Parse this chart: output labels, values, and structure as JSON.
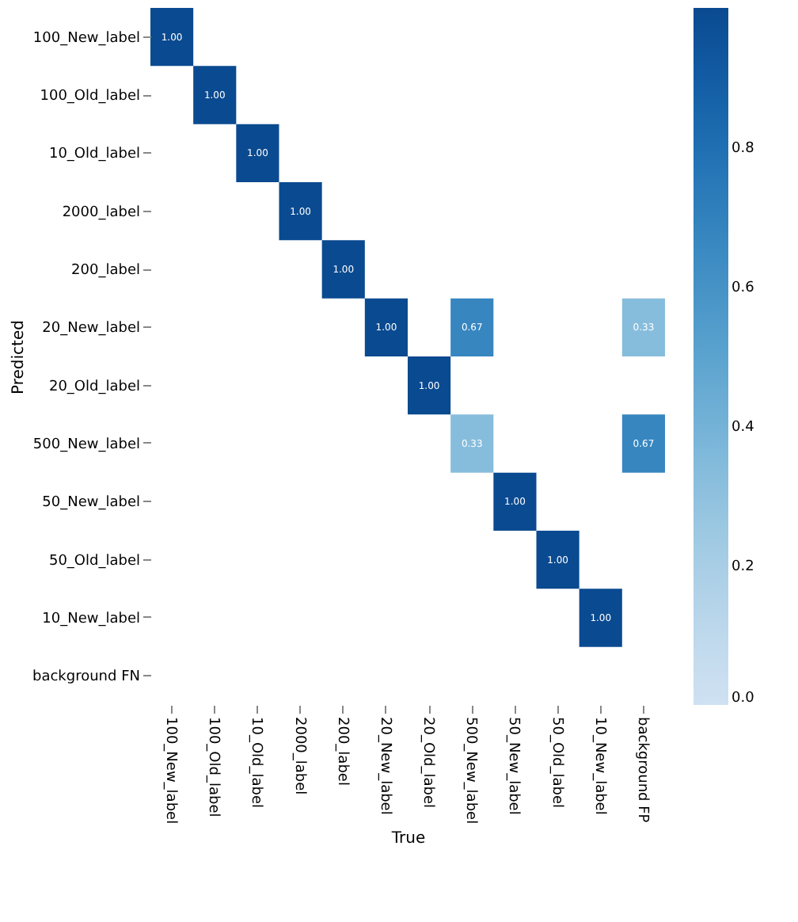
{
  "chart_data": {
    "type": "heatmap",
    "xlabel": "True",
    "ylabel": "Predicted",
    "categories": [
      "100_New_label",
      "100_Old_label",
      "10_Old_label",
      "2000_label",
      "200_label",
      "20_New_label",
      "20_Old_label",
      "500_New_label",
      "50_New_label",
      "50_Old_label",
      "10_New_label",
      "background FP"
    ],
    "y_categories": [
      "100_New_label",
      "100_Old_label",
      "10_Old_label",
      "2000_label",
      "200_label",
      "20_New_label",
      "20_Old_label",
      "500_New_label",
      "50_New_label",
      "50_Old_label",
      "10_New_label",
      "background FN"
    ],
    "cells": [
      [
        1.0,
        null,
        null,
        null,
        null,
        null,
        null,
        null,
        null,
        null,
        null,
        null
      ],
      [
        null,
        1.0,
        null,
        null,
        null,
        null,
        null,
        null,
        null,
        null,
        null,
        null
      ],
      [
        null,
        null,
        1.0,
        null,
        null,
        null,
        null,
        null,
        null,
        null,
        null,
        null
      ],
      [
        null,
        null,
        null,
        1.0,
        null,
        null,
        null,
        null,
        null,
        null,
        null,
        null
      ],
      [
        null,
        null,
        null,
        null,
        1.0,
        null,
        null,
        null,
        null,
        null,
        null,
        null
      ],
      [
        null,
        null,
        null,
        null,
        null,
        1.0,
        null,
        0.67,
        null,
        null,
        null,
        0.33
      ],
      [
        null,
        null,
        null,
        null,
        null,
        null,
        1.0,
        null,
        null,
        null,
        null,
        null
      ],
      [
        null,
        null,
        null,
        null,
        null,
        null,
        null,
        0.33,
        null,
        null,
        null,
        0.67
      ],
      [
        null,
        null,
        null,
        null,
        null,
        null,
        null,
        null,
        1.0,
        null,
        null,
        null
      ],
      [
        null,
        null,
        null,
        null,
        null,
        null,
        null,
        null,
        null,
        1.0,
        null,
        null
      ],
      [
        null,
        null,
        null,
        null,
        null,
        null,
        null,
        null,
        null,
        null,
        1.0,
        null
      ],
      [
        null,
        null,
        null,
        null,
        null,
        null,
        null,
        null,
        null,
        null,
        null,
        null
      ]
    ],
    "cell_labels": [
      [
        "1.00",
        null,
        null,
        null,
        null,
        null,
        null,
        null,
        null,
        null,
        null,
        null
      ],
      [
        null,
        "1.00",
        null,
        null,
        null,
        null,
        null,
        null,
        null,
        null,
        null,
        null
      ],
      [
        null,
        null,
        "1.00",
        null,
        null,
        null,
        null,
        null,
        null,
        null,
        null,
        null
      ],
      [
        null,
        null,
        null,
        "1.00",
        null,
        null,
        null,
        null,
        null,
        null,
        null,
        null
      ],
      [
        null,
        null,
        null,
        null,
        "1.00",
        null,
        null,
        null,
        null,
        null,
        null,
        null
      ],
      [
        null,
        null,
        null,
        null,
        null,
        "1.00",
        null,
        "0.67",
        null,
        null,
        null,
        "0.33"
      ],
      [
        null,
        null,
        null,
        null,
        null,
        null,
        "1.00",
        null,
        null,
        null,
        null,
        null
      ],
      [
        null,
        null,
        null,
        null,
        null,
        null,
        null,
        "0.33",
        null,
        null,
        null,
        "0.67"
      ],
      [
        null,
        null,
        null,
        null,
        null,
        null,
        null,
        null,
        "1.00",
        null,
        null,
        null
      ],
      [
        null,
        null,
        null,
        null,
        null,
        null,
        null,
        null,
        null,
        "1.00",
        null,
        null
      ],
      [
        null,
        null,
        null,
        null,
        null,
        null,
        null,
        null,
        null,
        null,
        "1.00",
        null
      ],
      [
        null,
        null,
        null,
        null,
        null,
        null,
        null,
        null,
        null,
        null,
        null,
        null
      ]
    ],
    "clim": [
      0,
      1
    ],
    "cticks": [
      {
        "value": 0,
        "label": "0.0"
      },
      {
        "value": 0.2,
        "label": "0.2"
      },
      {
        "value": 0.4,
        "label": "0.4"
      },
      {
        "value": 0.6,
        "label": "0.6"
      },
      {
        "value": 0.8,
        "label": "0.8"
      }
    ],
    "grid": false
  }
}
